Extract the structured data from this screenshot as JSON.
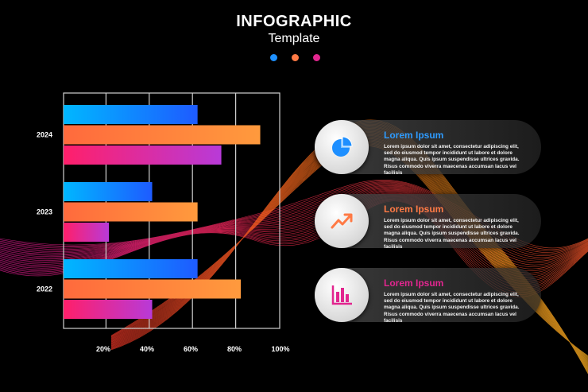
{
  "header": {
    "title": "INFOGRAPHIC",
    "subtitle": "Template",
    "dot_colors": [
      "#1e90ff",
      "#ff7a45",
      "#e2268f"
    ]
  },
  "chart_data": {
    "type": "bar",
    "orientation": "horizontal",
    "categories": [
      "2024",
      "2023",
      "2022"
    ],
    "series": [
      {
        "color": "#1e8fff",
        "values": [
          62,
          41,
          62
        ]
      },
      {
        "color": "#ff7a45",
        "values": [
          91,
          62,
          82
        ]
      },
      {
        "color": "#e2268f",
        "values": [
          73,
          21,
          41
        ]
      }
    ],
    "x_ticks": [
      "20%",
      "40%",
      "60%",
      "80%",
      "100%"
    ],
    "xlim": [
      0,
      100
    ],
    "grid": true
  },
  "cards": [
    {
      "title": "Lorem Ipsum",
      "color": "#2e9bff",
      "icon": "pie-chart-icon",
      "text": "Lorem ipsum dolor sit amet, consectetur adipiscing elit, sed do eiusmod tempor incididunt ut labore et dolore magna aliqua. Quis ipsum suspendisse ultrices gravida. Risus commodo viverra maecenas accumsan lacus vel facilisis"
    },
    {
      "title": "Lorem Ipsum",
      "color": "#ff7a45",
      "icon": "trend-up-icon",
      "text": "Lorem ipsum dolor sit amet, consectetur adipiscing elit, sed do eiusmod tempor incididunt ut labore et dolore magna aliqua. Quis ipsum suspendisse ultrices gravida. Risus commodo viverra maecenas accumsan lacus vel facilisis"
    },
    {
      "title": "Lorem Ipsum",
      "color": "#e2268f",
      "icon": "bar-chart-icon",
      "text": "Lorem ipsum dolor sit amet, consectetur adipiscing elit, sed do eiusmod tempor incididunt ut labore et dolore magna aliqua. Quis ipsum suspendisse ultrices gravida. Risus commodo viverra maecenas accumsan lacus vel facilisis"
    }
  ]
}
